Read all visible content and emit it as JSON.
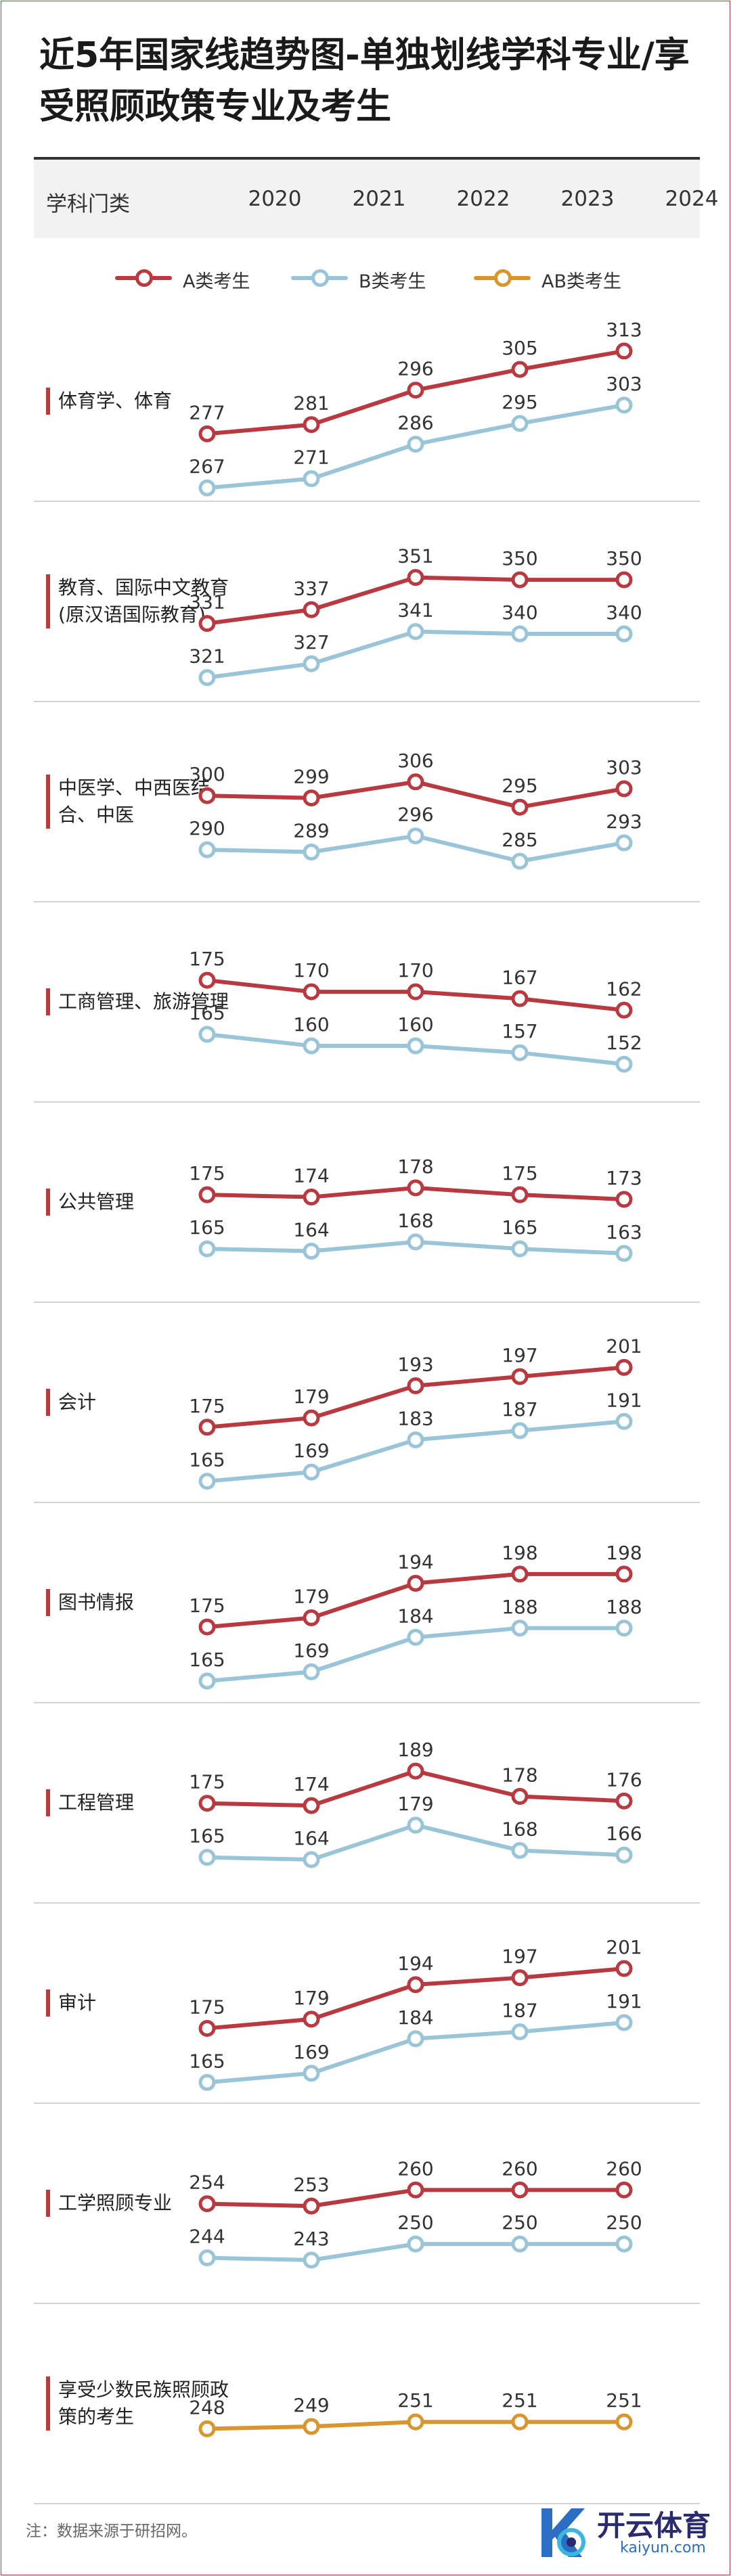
{
  "title": "近5年国家线趋势图-单独划线学科专业/享受照顾政策专业及考生",
  "header": {
    "label": "学科门类",
    "years": [
      "2020",
      "2021",
      "2022",
      "2023",
      "2024"
    ]
  },
  "legend": [
    {
      "name": "A类考生",
      "color": "#b8393f"
    },
    {
      "name": "B类考生",
      "color": "#9ac5d8"
    },
    {
      "name": "AB类考生",
      "color": "#d9962e"
    }
  ],
  "chart_data": {
    "type": "line",
    "x": [
      "2020",
      "2021",
      "2022",
      "2023",
      "2024"
    ],
    "subjects": [
      {
        "label": "体育学、体育",
        "series": [
          {
            "name": "A类考生",
            "values": [
              277,
              281,
              296,
              305,
              313
            ]
          },
          {
            "name": "B类考生",
            "values": [
              267,
              271,
              286,
              295,
              303
            ]
          }
        ]
      },
      {
        "label": "教育、国际中文教育(原汉语国际教育)",
        "series": [
          {
            "name": "A类考生",
            "values": [
              331,
              337,
              351,
              350,
              350
            ]
          },
          {
            "name": "B类考生",
            "values": [
              321,
              327,
              341,
              340,
              340
            ]
          }
        ]
      },
      {
        "label": "中医学、中西医结合、中医",
        "series": [
          {
            "name": "A类考生",
            "values": [
              300,
              299,
              306,
              295,
              303
            ]
          },
          {
            "name": "B类考生",
            "values": [
              290,
              289,
              296,
              285,
              293
            ]
          }
        ]
      },
      {
        "label": "工商管理、旅游管理",
        "series": [
          {
            "name": "A类考生",
            "values": [
              175,
              170,
              170,
              167,
              162
            ]
          },
          {
            "name": "B类考生",
            "values": [
              165,
              160,
              160,
              157,
              152
            ]
          }
        ]
      },
      {
        "label": "公共管理",
        "series": [
          {
            "name": "A类考生",
            "values": [
              175,
              174,
              178,
              175,
              173
            ]
          },
          {
            "name": "B类考生",
            "values": [
              165,
              164,
              168,
              165,
              163
            ]
          }
        ]
      },
      {
        "label": "会计",
        "series": [
          {
            "name": "A类考生",
            "values": [
              175,
              179,
              193,
              197,
              201
            ]
          },
          {
            "name": "B类考生",
            "values": [
              165,
              169,
              183,
              187,
              191
            ]
          }
        ]
      },
      {
        "label": "图书情报",
        "series": [
          {
            "name": "A类考生",
            "values": [
              175,
              179,
              194,
              198,
              198
            ]
          },
          {
            "name": "B类考生",
            "values": [
              165,
              169,
              184,
              188,
              188
            ]
          }
        ]
      },
      {
        "label": "工程管理",
        "series": [
          {
            "name": "A类考生",
            "values": [
              175,
              174,
              189,
              178,
              176
            ]
          },
          {
            "name": "B类考生",
            "values": [
              165,
              164,
              179,
              168,
              166
            ]
          }
        ]
      },
      {
        "label": "审计",
        "series": [
          {
            "name": "A类考生",
            "values": [
              175,
              179,
              194,
              197,
              201
            ]
          },
          {
            "name": "B类考生",
            "values": [
              165,
              169,
              184,
              187,
              191
            ]
          }
        ]
      },
      {
        "label": "工学照顾专业",
        "series": [
          {
            "name": "A类考生",
            "values": [
              254,
              253,
              260,
              260,
              260
            ]
          },
          {
            "name": "B类考生",
            "values": [
              244,
              243,
              250,
              250,
              250
            ]
          }
        ]
      },
      {
        "label": "享受少数民族照顾政策的考生",
        "series": [
          {
            "name": "AB类考生",
            "values": [
              248,
              249,
              251,
              251,
              251
            ]
          }
        ]
      }
    ]
  },
  "footnote": "注：数据来源于研招网。",
  "logo": {
    "cn": "开云体育",
    "en": "kaiyun.com"
  }
}
